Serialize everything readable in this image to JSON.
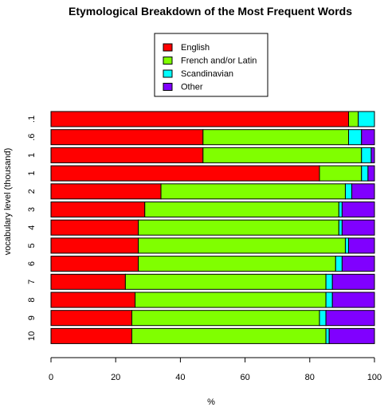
{
  "chart_data": {
    "type": "bar",
    "orientation": "horizontal",
    "stacked": true,
    "title": "Etymological Breakdown of the Most Frequent Words",
    "xlabel": "%",
    "ylabel": "vocabulary level (thousand)",
    "xlim": [
      0,
      100
    ],
    "xticks": [
      0,
      20,
      40,
      60,
      80,
      100
    ],
    "categories": [
      ".1",
      ".6",
      "1",
      "1",
      "2",
      "3",
      "4",
      "5",
      "6",
      "7",
      "8",
      "9",
      "10"
    ],
    "series": [
      {
        "name": "English",
        "color": "#ff0000",
        "values": [
          92,
          47,
          47,
          83,
          34,
          29,
          27,
          27,
          27,
          23,
          26,
          25,
          25
        ]
      },
      {
        "name": "French and/or Latin",
        "color": "#80ff00",
        "values": [
          3,
          45,
          49,
          13,
          57,
          60,
          62,
          64,
          61,
          62,
          59,
          58,
          60
        ]
      },
      {
        "name": "Scandinavian",
        "color": "#00ffff",
        "values": [
          5,
          4,
          3,
          2,
          2,
          1,
          1,
          1,
          2,
          2,
          2,
          2,
          1
        ]
      },
      {
        "name": "Other",
        "color": "#8000ff",
        "values": [
          0,
          4,
          1,
          2,
          7,
          10,
          10,
          8,
          10,
          13,
          13,
          15,
          14
        ]
      }
    ],
    "legend_position": "top-center",
    "grid": false
  }
}
